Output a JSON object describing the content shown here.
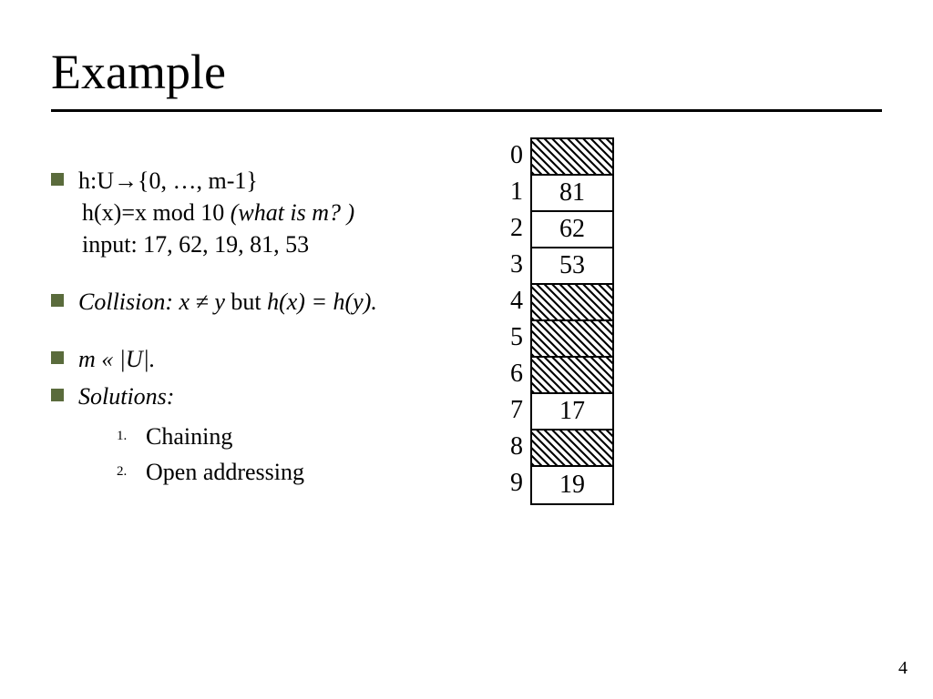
{
  "title": "Example",
  "bullets": {
    "b1_line1": "h:U→{0, …, m-1}",
    "b1_line2_prefix": "h(x)=x mod 10 ",
    "b1_line2_ital": "(what is m? )",
    "b1_line3": "input: 17, 62, 19, 81, 53",
    "b2_prefix": "Collision: x ≠ y ",
    "b2_mid": "but ",
    "b2_suffix": "h(x) = h(y).",
    "b3": "m « |U|.",
    "b4_label": "Solutions:",
    "sol1_num": "1.",
    "sol1_text": "Chaining",
    "sol2_num": "2.",
    "sol2_text": "Open addressing"
  },
  "table": {
    "rows": [
      {
        "index": "0",
        "value": "",
        "hatched": true
      },
      {
        "index": "1",
        "value": "81",
        "hatched": false
      },
      {
        "index": "2",
        "value": "62",
        "hatched": false
      },
      {
        "index": "3",
        "value": "53",
        "hatched": false
      },
      {
        "index": "4",
        "value": "",
        "hatched": true
      },
      {
        "index": "5",
        "value": "",
        "hatched": true
      },
      {
        "index": "6",
        "value": "",
        "hatched": true
      },
      {
        "index": "7",
        "value": "17",
        "hatched": false
      },
      {
        "index": "8",
        "value": "",
        "hatched": true
      },
      {
        "index": "9",
        "value": "19",
        "hatched": false
      }
    ]
  },
  "colors": {
    "bullet_square": "#5a6b3c",
    "text": "#000000",
    "background": "#ffffff"
  },
  "page_number": "4"
}
